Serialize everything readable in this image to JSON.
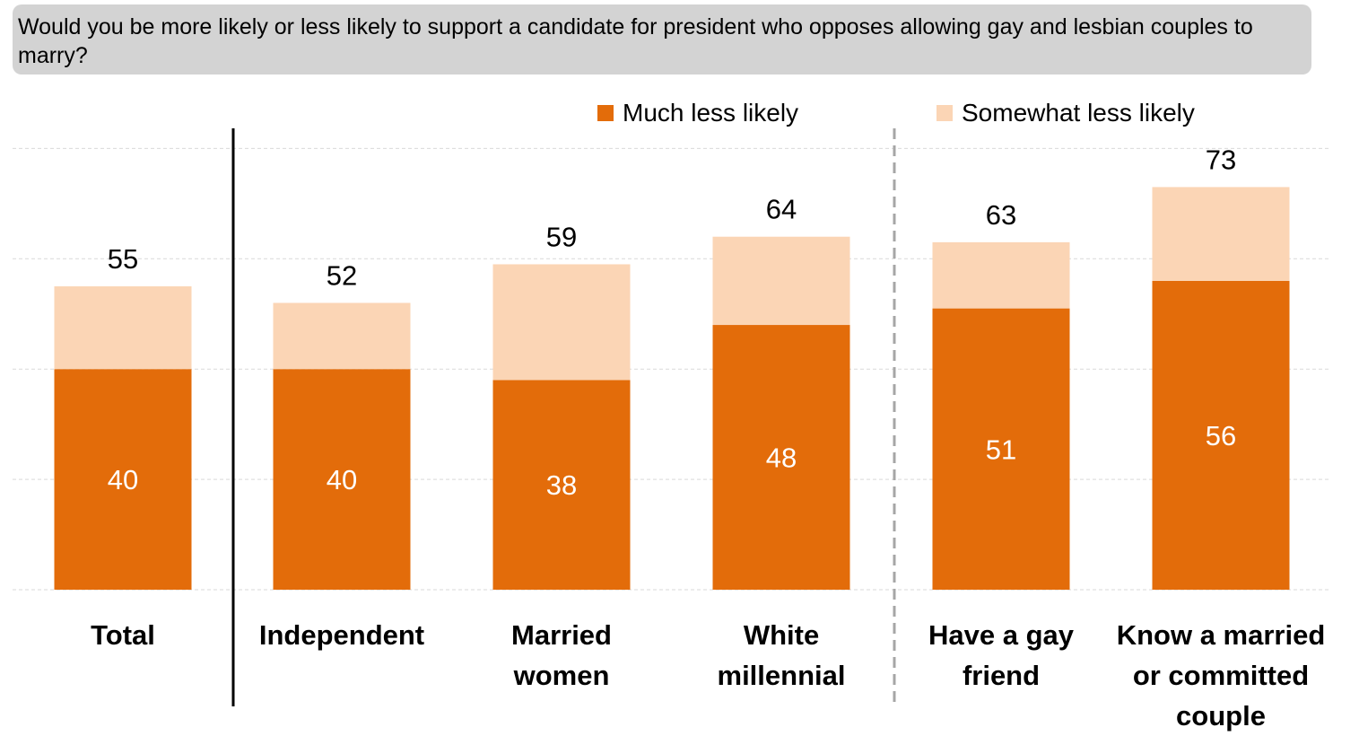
{
  "question": "Would you be more likely or less likely to support a candidate for president who opposes allowing gay and lesbian couples to marry?",
  "colors": {
    "much_less": "#e36c0a",
    "somewhat_less": "#fbd5b5",
    "grid": "#d9d9d9",
    "divider_solid": "#000000",
    "divider_dashed": "#a6a6a6"
  },
  "legend": {
    "much_less_label": "Much less likely",
    "somewhat_less_label": "Somewhat less likely"
  },
  "chart_data": {
    "type": "bar",
    "stacked": true,
    "title": "Would you be more likely or less likely to support a candidate for president who opposes allowing gay and lesbian couples to marry?",
    "categories": [
      "Total",
      "Independent",
      "Married women",
      "White millennial",
      "Have a gay friend",
      "Know a married or committed couple"
    ],
    "category_lines": [
      [
        "Total"
      ],
      [
        "Independent"
      ],
      [
        "Married",
        "women"
      ],
      [
        "White",
        "millennial"
      ],
      [
        "Have a gay",
        "friend"
      ],
      [
        "Know a married",
        "or committed",
        "couple"
      ]
    ],
    "series": [
      {
        "name": "Much less likely",
        "values": [
          40,
          40,
          38,
          48,
          51,
          56
        ]
      },
      {
        "name": "Somewhat less likely",
        "values": [
          15,
          12,
          21,
          16,
          12,
          17
        ]
      }
    ],
    "totals": [
      55,
      52,
      59,
      64,
      63,
      73
    ],
    "ylim": [
      0,
      80
    ],
    "grid": true,
    "legend_position": "top"
  }
}
